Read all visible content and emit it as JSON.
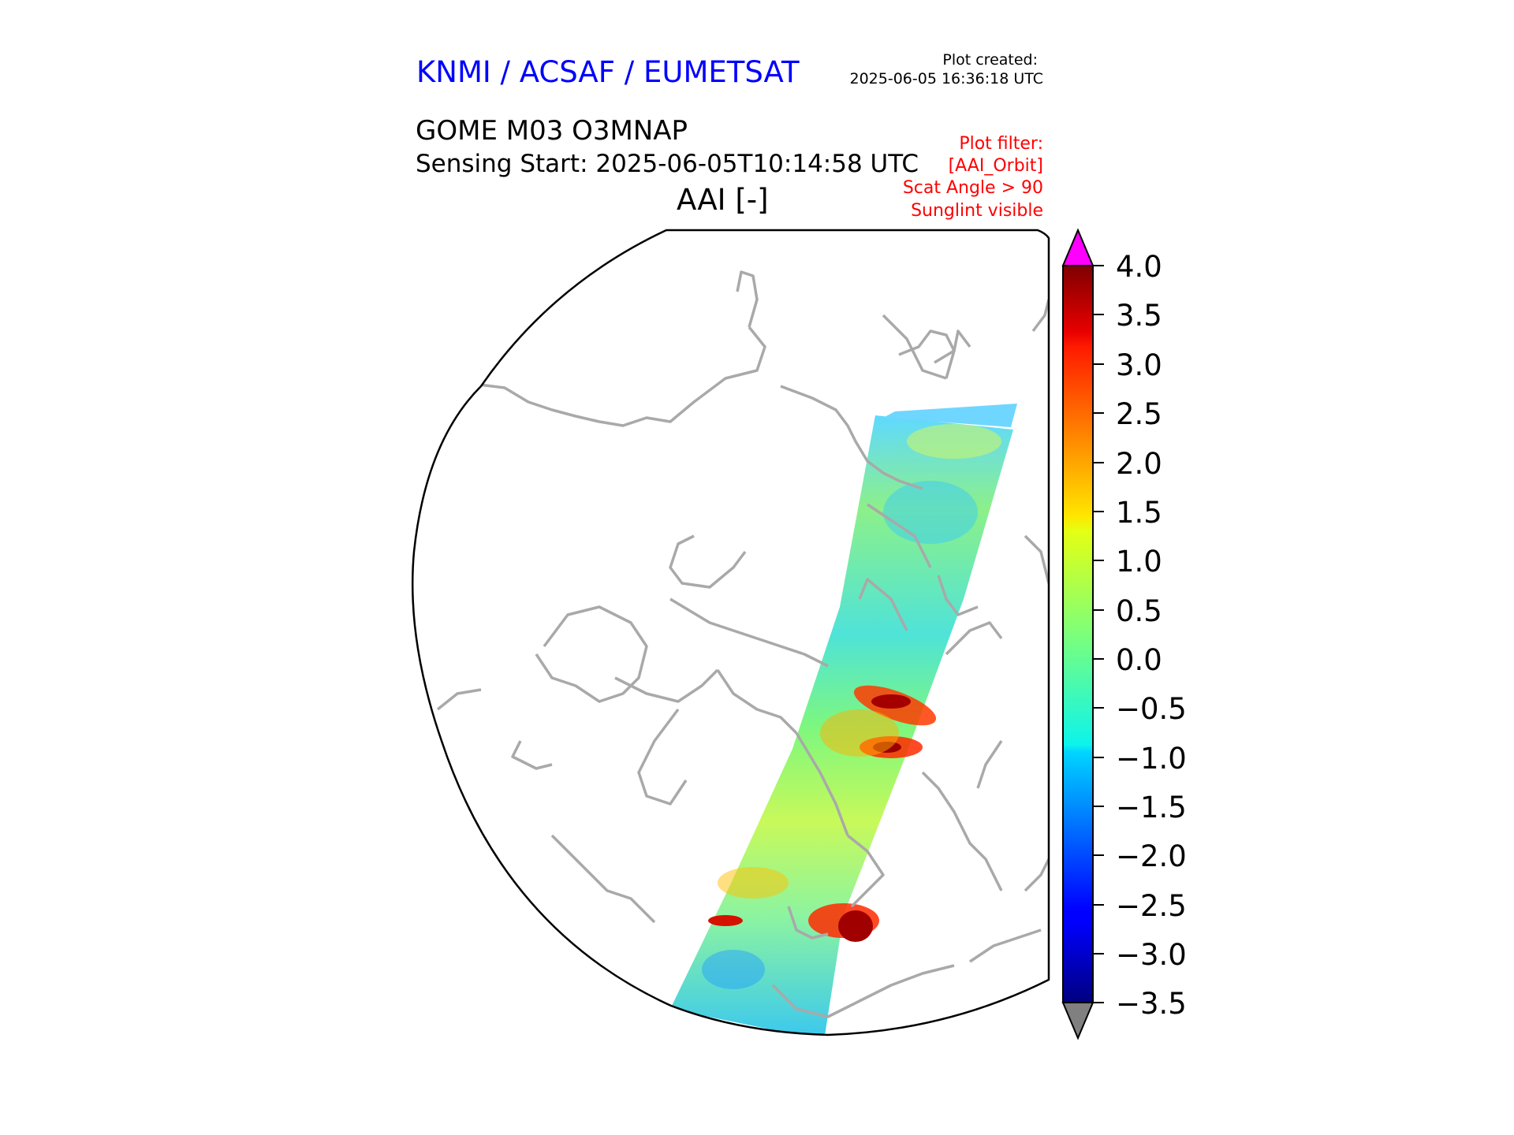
{
  "header": {
    "agency": "KNMI / ACSAF / EUMETSAT",
    "plot_created_label": "Plot created:",
    "plot_created_time": "2025-06-05 16:36:18 UTC",
    "product": "GOME M03 O3MNAP",
    "sensing_start": "Sensing Start: 2025-06-05T10:14:58 UTC",
    "variable_title": "AAI [-]"
  },
  "filter": {
    "lines": [
      "Plot filter:",
      "[AAI_Orbit]",
      "Scat Angle > 90",
      "Sunglint visible"
    ]
  },
  "colorbar": {
    "ticks": [
      "4.0",
      "3.5",
      "3.0",
      "2.5",
      "2.0",
      "1.5",
      "1.0",
      "0.5",
      "0.0",
      "−0.5",
      "−1.0",
      "−1.5",
      "−2.0",
      "−2.5",
      "−3.0",
      "−3.5"
    ],
    "min": -3.5,
    "max": 4.0,
    "over_color": "#ff00ff",
    "under_color": "#808080",
    "colormap": "jet"
  },
  "colors": {
    "agency_text": "#0000ff",
    "filter_text": "#ff0000",
    "coastline": "#a9a9a9"
  }
}
